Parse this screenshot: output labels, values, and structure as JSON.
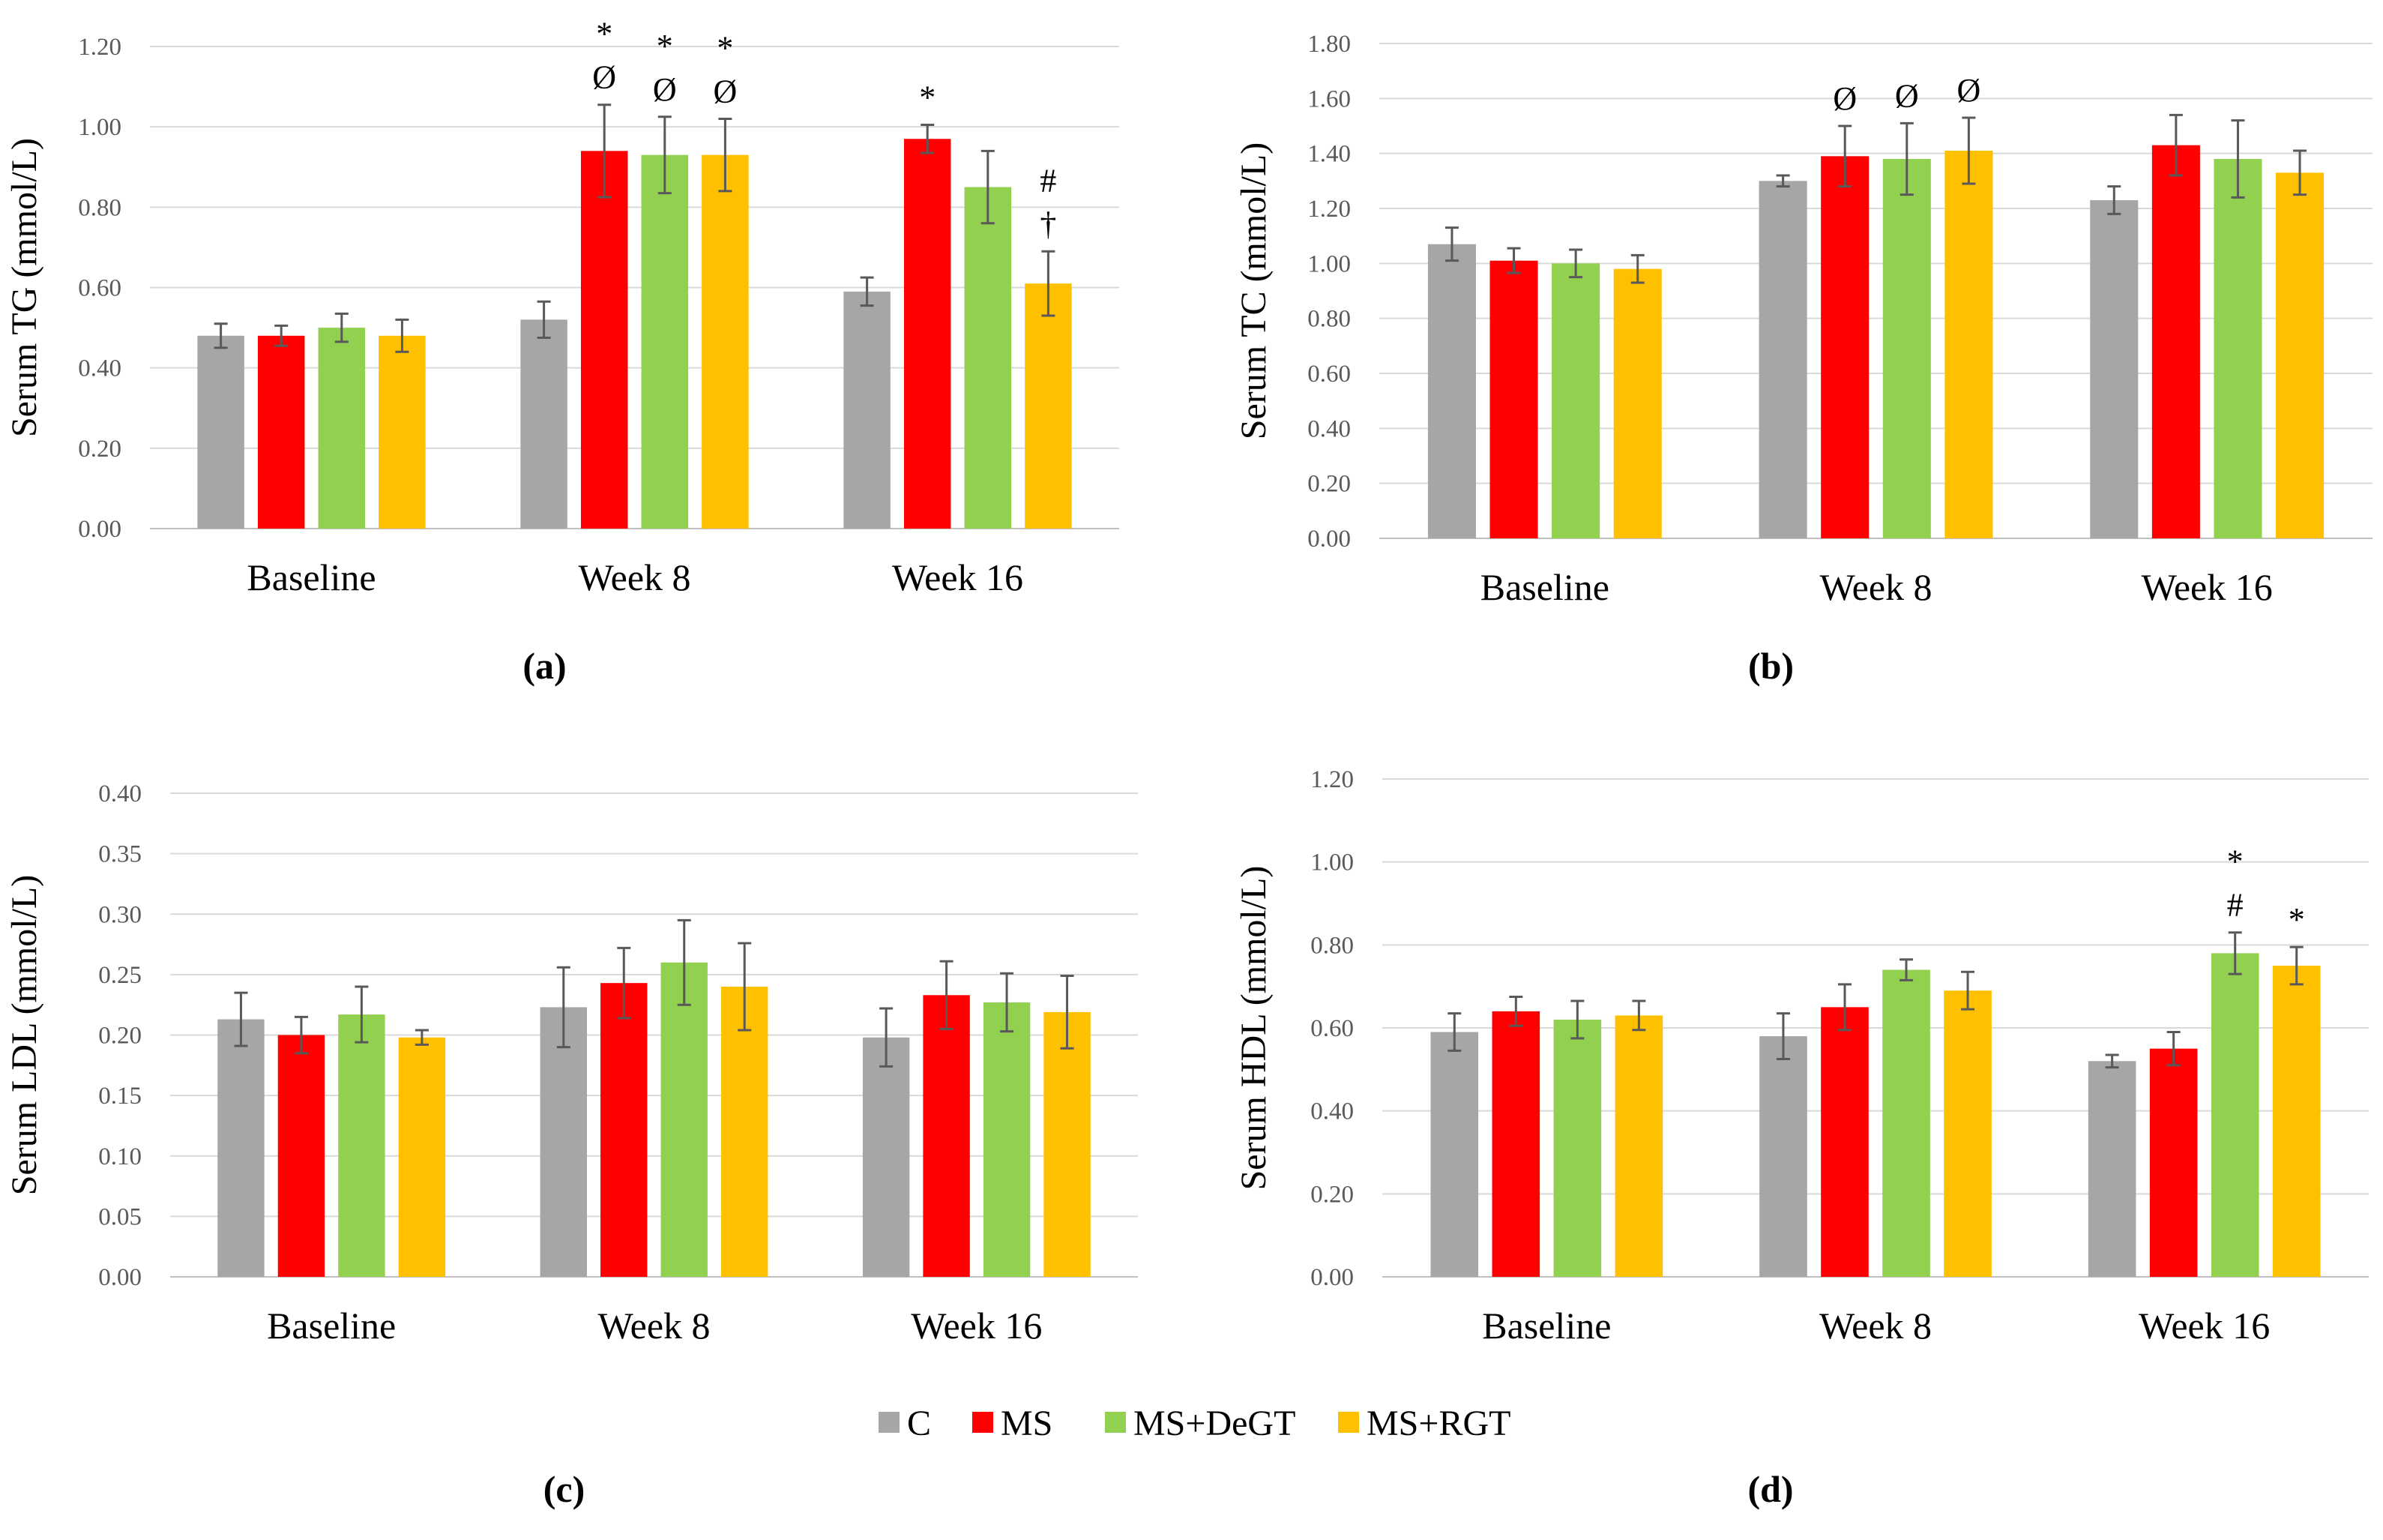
{
  "colors": {
    "C": "#a6a6a6",
    "MS": "#ff0000",
    "MS+DeGT": "#92d050",
    "MS+RGT": "#ffc000"
  },
  "legend": [
    "C",
    "MS",
    "MS+DeGT",
    "MS+RGT"
  ],
  "chart_data": [
    {
      "panel": "(a)",
      "type": "bar",
      "ylabel": "Serum TG (mmol/L)",
      "ylim": [
        0,
        1.2
      ],
      "ytick_step": 0.2,
      "ytick_labels": [
        "0.00",
        "0.20",
        "0.40",
        "0.60",
        "0.80",
        "1.00",
        "1.20"
      ],
      "categories": [
        "Baseline",
        "Week 8",
        "Week 16"
      ],
      "series": [
        {
          "name": "C",
          "values": [
            0.48,
            0.52,
            0.59
          ],
          "errors": [
            0.03,
            0.045,
            0.035
          ]
        },
        {
          "name": "MS",
          "values": [
            0.48,
            0.94,
            0.97
          ],
          "errors": [
            0.025,
            0.115,
            0.035
          ]
        },
        {
          "name": "MS+DeGT",
          "values": [
            0.5,
            0.93,
            0.85
          ],
          "errors": [
            0.035,
            0.095,
            0.09
          ]
        },
        {
          "name": "MS+RGT",
          "values": [
            0.48,
            0.93,
            0.61
          ],
          "errors": [
            0.04,
            0.09,
            0.08
          ]
        }
      ],
      "annotations": [
        {
          "category": 1,
          "series": 1,
          "lines": [
            "*",
            "Ø"
          ]
        },
        {
          "category": 1,
          "series": 2,
          "lines": [
            "*",
            "Ø"
          ]
        },
        {
          "category": 1,
          "series": 3,
          "lines": [
            "*",
            "Ø"
          ]
        },
        {
          "category": 2,
          "series": 1,
          "lines": [
            "*"
          ]
        },
        {
          "category": 2,
          "series": 3,
          "lines": [
            "#",
            "†"
          ]
        }
      ]
    },
    {
      "panel": "(b)",
      "type": "bar",
      "ylabel": "Serum TC (mmol/L)",
      "ylim": [
        0,
        1.8
      ],
      "ytick_step": 0.2,
      "ytick_labels": [
        "0.00",
        "0.20",
        "0.40",
        "0.60",
        "0.80",
        "1.00",
        "1.20",
        "1.40",
        "1.60",
        "1.80"
      ],
      "categories": [
        "Baseline",
        "Week 8",
        "Week 16"
      ],
      "series": [
        {
          "name": "C",
          "values": [
            1.07,
            1.3,
            1.23
          ],
          "errors": [
            0.06,
            0.02,
            0.05
          ]
        },
        {
          "name": "MS",
          "values": [
            1.01,
            1.39,
            1.43
          ],
          "errors": [
            0.045,
            0.11,
            0.11
          ]
        },
        {
          "name": "MS+DeGT",
          "values": [
            1.0,
            1.38,
            1.38
          ],
          "errors": [
            0.05,
            0.13,
            0.14
          ]
        },
        {
          "name": "MS+RGT",
          "values": [
            0.98,
            1.41,
            1.33
          ],
          "errors": [
            0.05,
            0.12,
            0.08
          ]
        }
      ],
      "annotations": [
        {
          "category": 1,
          "series": 1,
          "lines": [
            "Ø"
          ]
        },
        {
          "category": 1,
          "series": 2,
          "lines": [
            "Ø"
          ]
        },
        {
          "category": 1,
          "series": 3,
          "lines": [
            "Ø"
          ]
        }
      ]
    },
    {
      "panel": "(c)",
      "type": "bar",
      "ylabel": "Serum LDL (mmol/L)",
      "ylim": [
        0,
        0.4
      ],
      "ytick_step": 0.05,
      "ytick_labels": [
        "0.00",
        "0.05",
        "0.10",
        "0.15",
        "0.20",
        "0.25",
        "0.30",
        "0.35",
        "0.40"
      ],
      "categories": [
        "Baseline",
        "Week 8",
        "Week 16"
      ],
      "series": [
        {
          "name": "C",
          "values": [
            0.213,
            0.223,
            0.198
          ],
          "errors": [
            0.022,
            0.033,
            0.024
          ]
        },
        {
          "name": "MS",
          "values": [
            0.2,
            0.243,
            0.233
          ],
          "errors": [
            0.015,
            0.029,
            0.028
          ]
        },
        {
          "name": "MS+DeGT",
          "values": [
            0.217,
            0.26,
            0.227
          ],
          "errors": [
            0.023,
            0.035,
            0.024
          ]
        },
        {
          "name": "MS+RGT",
          "values": [
            0.198,
            0.24,
            0.219
          ],
          "errors": [
            0.006,
            0.036,
            0.03
          ]
        }
      ],
      "annotations": []
    },
    {
      "panel": "(d)",
      "type": "bar",
      "ylabel": "Serum HDL (mmol/L)",
      "ylim": [
        0,
        1.2
      ],
      "ytick_step": 0.2,
      "ytick_labels": [
        "0.00",
        "0.20",
        "0.40",
        "0.60",
        "0.80",
        "1.00",
        "1.20"
      ],
      "categories": [
        "Baseline",
        "Week 8",
        "Week 16"
      ],
      "series": [
        {
          "name": "C",
          "values": [
            0.59,
            0.58,
            0.52
          ],
          "errors": [
            0.045,
            0.055,
            0.015
          ]
        },
        {
          "name": "MS",
          "values": [
            0.64,
            0.65,
            0.55
          ],
          "errors": [
            0.035,
            0.055,
            0.04
          ]
        },
        {
          "name": "MS+DeGT",
          "values": [
            0.62,
            0.74,
            0.78
          ],
          "errors": [
            0.045,
            0.025,
            0.05
          ]
        },
        {
          "name": "MS+RGT",
          "values": [
            0.63,
            0.69,
            0.75
          ],
          "errors": [
            0.035,
            0.045,
            0.045
          ]
        }
      ],
      "annotations": [
        {
          "category": 2,
          "series": 2,
          "lines": [
            "*",
            "#"
          ]
        },
        {
          "category": 2,
          "series": 3,
          "lines": [
            "*"
          ]
        }
      ]
    }
  ]
}
